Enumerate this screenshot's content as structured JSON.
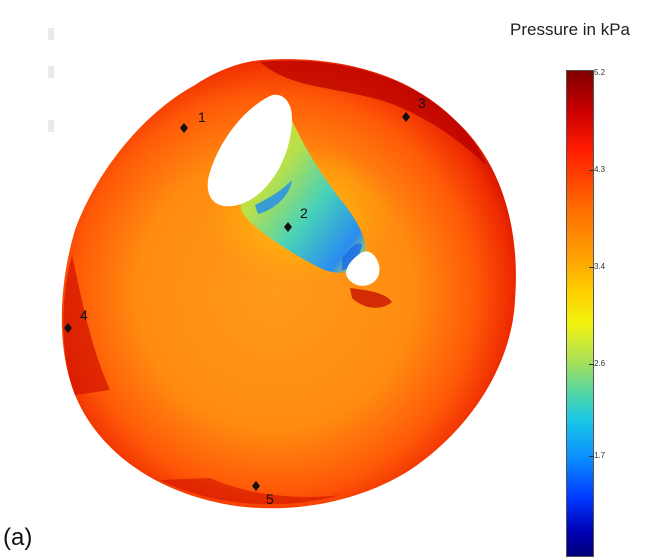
{
  "figure": {
    "panel_label": "(a)",
    "colorbar": {
      "title": "Pressure in kPa",
      "ticks": [
        "5.2",
        "4.3",
        "3.4",
        "2.6",
        "1.7"
      ]
    },
    "markers": [
      "1",
      "2",
      "3",
      "4",
      "5"
    ],
    "colors": {
      "max": "#7f0000",
      "high": "#ff3000",
      "mid": "#ff8c00",
      "yellow": "#f2f20e",
      "cyan": "#19c8e6",
      "low": "#00007a"
    }
  }
}
